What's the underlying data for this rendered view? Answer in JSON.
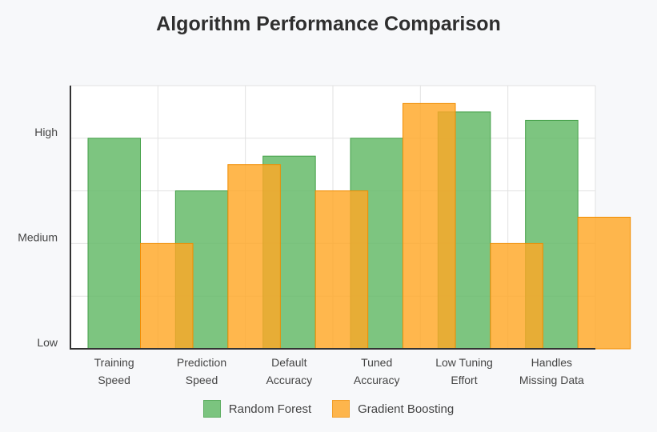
{
  "chart_data": {
    "type": "bar",
    "title": "Algorithm Performance Comparison",
    "categories": [
      [
        "Training",
        "Speed"
      ],
      [
        "Prediction",
        "Speed"
      ],
      [
        "Default",
        "Accuracy"
      ],
      [
        "Tuned",
        "Accuracy"
      ],
      [
        "Low Tuning",
        "Effort"
      ],
      [
        "Handles",
        "Missing Data"
      ]
    ],
    "y_ticks": [
      {
        "value": 0,
        "label": "Low"
      },
      {
        "value": 1,
        "label": "Medium"
      },
      {
        "value": 2,
        "label": "High"
      }
    ],
    "ylim": [
      0,
      2.5
    ],
    "grid": true,
    "legend_position": "bottom",
    "series": [
      {
        "name": "Random Forest",
        "values": [
          2.0,
          1.5,
          1.83,
          2.0,
          2.25,
          2.17
        ],
        "fill": "#66bb6a",
        "stroke": "#43a047"
      },
      {
        "name": "Gradient Boosting",
        "values": [
          1.0,
          1.75,
          1.5,
          2.33,
          1.0,
          1.25
        ],
        "fill": "#ffa726",
        "stroke": "#f08c00"
      }
    ]
  }
}
